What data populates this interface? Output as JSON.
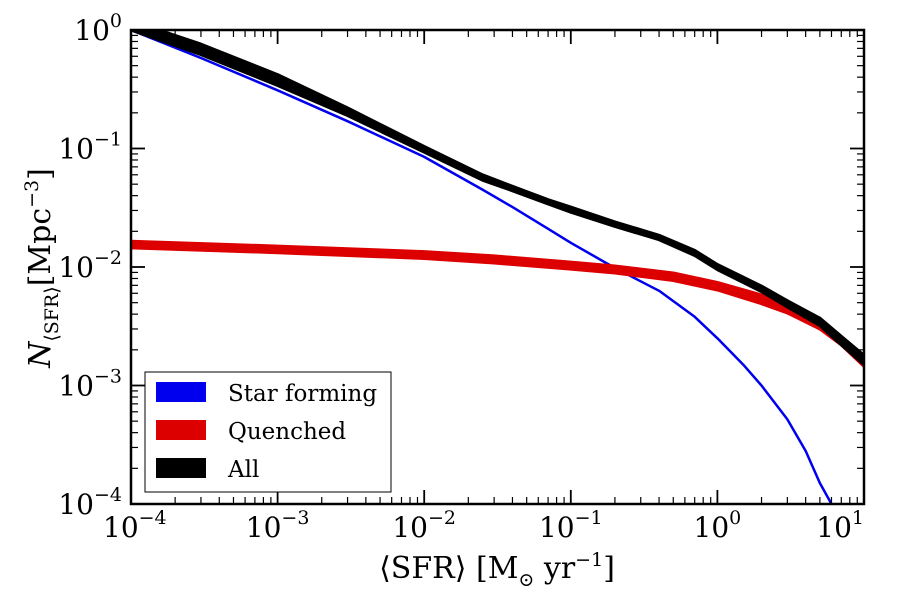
{
  "chart_data": {
    "type": "line",
    "title": "",
    "xlabel": {
      "parts": [
        {
          "text": "⟨SFR⟩ [M",
          "shift": "none"
        },
        {
          "text": "⊙",
          "shift": "sub"
        },
        {
          "text": " yr",
          "shift": "none"
        },
        {
          "text": "−1",
          "shift": "super"
        },
        {
          "text": "]",
          "shift": "none"
        }
      ]
    },
    "ylabel": {
      "parts": [
        {
          "text": "N",
          "shift": "none",
          "italic": true
        },
        {
          "text": "⟨SFR⟩",
          "shift": "sub"
        },
        {
          "text": "[Mpc",
          "shift": "none"
        },
        {
          "text": "−3",
          "shift": "super"
        },
        {
          "text": "]",
          "shift": "none"
        }
      ]
    },
    "xscale": "log",
    "yscale": "log",
    "xlim": [
      0.0001,
      10
    ],
    "ylim": [
      0.0001,
      1
    ],
    "xticks": [
      {
        "value": 0.0001,
        "base": "10",
        "exp": "−4"
      },
      {
        "value": 0.001,
        "base": "10",
        "exp": "−3"
      },
      {
        "value": 0.01,
        "base": "10",
        "exp": "−2"
      },
      {
        "value": 0.1,
        "base": "10",
        "exp": "−1"
      },
      {
        "value": 1,
        "base": "10",
        "exp": "0"
      },
      {
        "value": 10,
        "base": "10",
        "exp": "1"
      }
    ],
    "yticks": [
      {
        "value": 0.0001,
        "base": "10",
        "exp": "−4"
      },
      {
        "value": 0.001,
        "base": "10",
        "exp": "−3"
      },
      {
        "value": 0.01,
        "base": "10",
        "exp": "−2"
      },
      {
        "value": 0.1,
        "base": "10",
        "exp": "−1"
      },
      {
        "value": 1,
        "base": "10",
        "exp": "0"
      }
    ],
    "grid": false,
    "legend_position": "lower-left",
    "series": [
      {
        "name": "Star forming",
        "color": "#0000ee",
        "band": false,
        "x": [
          0.0001,
          0.0003,
          0.001,
          0.003,
          0.01,
          0.025,
          0.04,
          0.07,
          0.1,
          0.2,
          0.4,
          0.7,
          1,
          1.5,
          2,
          3,
          4,
          5,
          6
        ],
        "y": [
          1.0,
          0.58,
          0.31,
          0.17,
          0.085,
          0.045,
          0.032,
          0.021,
          0.016,
          0.0098,
          0.0063,
          0.0038,
          0.0025,
          0.0015,
          0.001,
          0.00052,
          0.00028,
          0.00015,
          0.0001
        ]
      },
      {
        "name": "Quenched",
        "color": "#dd0000",
        "band": true,
        "x": [
          0.0001,
          0.001,
          0.01,
          0.03,
          0.1,
          0.2,
          0.5,
          1,
          2,
          3,
          5,
          7,
          10
        ],
        "y_low": [
          0.0145,
          0.0132,
          0.0118,
          0.0108,
          0.0096,
          0.0089,
          0.0077,
          0.0064,
          0.0049,
          0.0041,
          0.003,
          0.0022,
          0.00145
        ],
        "y_high": [
          0.0165,
          0.015,
          0.0135,
          0.0124,
          0.011,
          0.0102,
          0.0089,
          0.0074,
          0.0058,
          0.0048,
          0.0035,
          0.0025,
          0.00165
        ]
      },
      {
        "name": "All",
        "color": "#000000",
        "band": true,
        "x": [
          0.0001,
          0.0003,
          0.001,
          0.003,
          0.01,
          0.025,
          0.04,
          0.07,
          0.1,
          0.2,
          0.4,
          0.7,
          1,
          2,
          3,
          5,
          7,
          10
        ],
        "y_low": [
          1.0,
          0.62,
          0.34,
          0.19,
          0.093,
          0.054,
          0.044,
          0.034,
          0.029,
          0.022,
          0.017,
          0.0125,
          0.0095,
          0.0062,
          0.0046,
          0.0032,
          0.0022,
          0.0015
        ],
        "y_high": [
          1.2,
          0.76,
          0.42,
          0.22,
          0.104,
          0.06,
          0.048,
          0.037,
          0.032,
          0.024,
          0.0185,
          0.0138,
          0.0105,
          0.0069,
          0.0052,
          0.0037,
          0.0026,
          0.0018
        ]
      }
    ]
  }
}
